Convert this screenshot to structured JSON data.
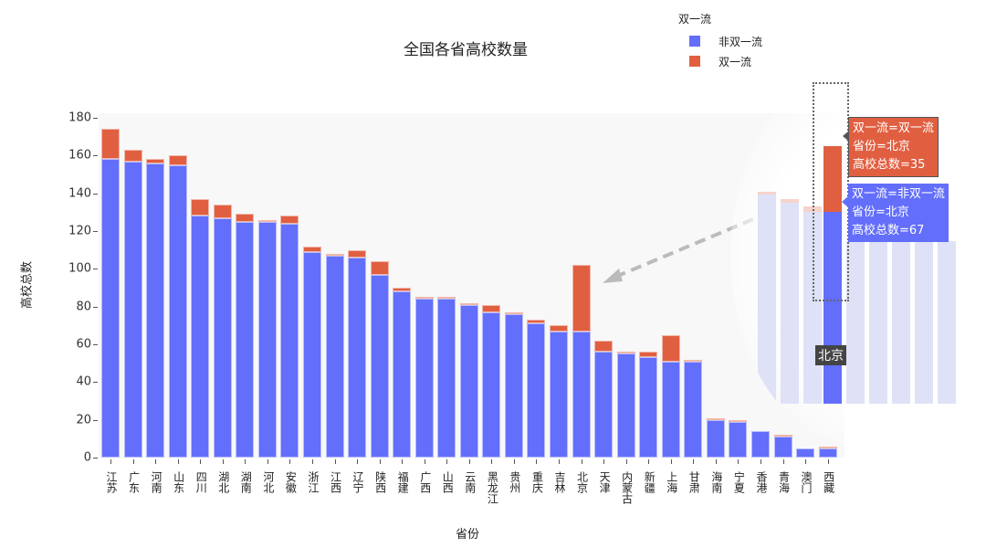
{
  "header": {
    "title": "全国各省高校数量"
  },
  "legend": {
    "title": "双一流",
    "items": [
      {
        "label": "非双一流",
        "color": "#636efa"
      },
      {
        "label": "双一流",
        "color": "#e15f41"
      }
    ]
  },
  "axes": {
    "xlabel": "省份",
    "ylabel": "高校总数",
    "yticks": [
      "0",
      "20",
      "40",
      "60",
      "80",
      "100",
      "120",
      "140",
      "160",
      "180"
    ]
  },
  "tooltip": {
    "upper": {
      "line1": "双一流=双一流",
      "line2": "省份=北京",
      "line3": "高校总数=35"
    },
    "lower": {
      "line1": "双一流=非双一流",
      "line2": "省份=北京",
      "line3": "高校总数=67"
    },
    "hover_xlabel": "北京"
  },
  "zoom_inset_labels": [
    "吉",
    "北京",
    "天津",
    "内蒙古",
    "新疆",
    "上海"
  ],
  "chart_data": {
    "type": "bar",
    "barmode": "stack",
    "title": "全国各省高校数量",
    "xlabel": "省份",
    "ylabel": "高校总数",
    "ylim": [
      0,
      180
    ],
    "legend_title": "双一流",
    "legend_position": "top-right",
    "categories": [
      "江苏",
      "广东",
      "河南",
      "山东",
      "四川",
      "湖北",
      "湖南",
      "河北",
      "安徽",
      "浙江",
      "江西",
      "辽宁",
      "陕西",
      "福建",
      "广西",
      "山西",
      "云南",
      "黑龙江",
      "贵州",
      "重庆",
      "吉林",
      "北京",
      "天津",
      "内蒙古",
      "新疆",
      "上海",
      "甘肃",
      "海南",
      "宁夏",
      "香港",
      "青海",
      "澳门",
      "西藏"
    ],
    "series": [
      {
        "name": "非双一流",
        "color": "#636efa",
        "values": [
          158,
          157,
          156,
          155,
          128,
          127,
          125,
          125,
          124,
          109,
          107,
          106,
          97,
          88,
          84,
          84,
          81,
          77,
          76,
          71,
          67,
          67,
          56,
          55,
          53,
          51,
          51,
          20,
          19,
          14,
          11,
          5,
          5
        ]
      },
      {
        "name": "双一流",
        "color": "#e15f41",
        "values": [
          16,
          6,
          2,
          5,
          9,
          7,
          4,
          1,
          4,
          3,
          1,
          4,
          7,
          2,
          1,
          1,
          1,
          4,
          1,
          2,
          3,
          35,
          6,
          1,
          3,
          14,
          1,
          1,
          1,
          0,
          1,
          0,
          1
        ]
      }
    ]
  }
}
